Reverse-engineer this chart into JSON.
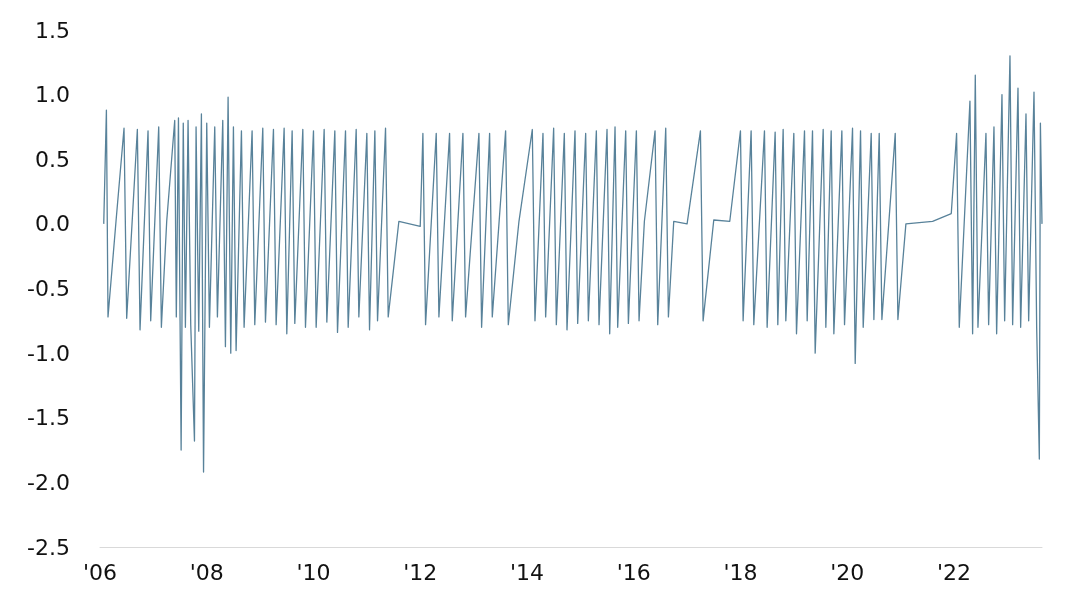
{
  "chart_data": {
    "type": "line",
    "color": "#58829a",
    "marker": "none",
    "grid": false,
    "line_style": "solid",
    "xlim": [
      2006,
      2023.65
    ],
    "ylim": [
      -2.5,
      1.5
    ],
    "xticks": [
      {
        "value": 2006,
        "label": "'06"
      },
      {
        "value": 2008,
        "label": "'08"
      },
      {
        "value": 2010,
        "label": "'10"
      },
      {
        "value": 2012,
        "label": "'12"
      },
      {
        "value": 2014,
        "label": "'14"
      },
      {
        "value": 2016,
        "label": "'16"
      },
      {
        "value": 2018,
        "label": "'18"
      },
      {
        "value": 2020,
        "label": "'20"
      },
      {
        "value": 2022,
        "label": "'22"
      }
    ],
    "yticks": [
      {
        "value": -2.5,
        "label": "-2.5"
      },
      {
        "value": -2,
        "label": "-2.0"
      },
      {
        "value": -1.5,
        "label": "-1.5"
      },
      {
        "value": -1,
        "label": "-1.0"
      },
      {
        "value": -0.5,
        "label": "-0.5"
      },
      {
        "value": 0,
        "label": "0.0"
      },
      {
        "value": 0.5,
        "label": "0.5"
      },
      {
        "value": 1,
        "label": "1.0"
      },
      {
        "value": 1.5,
        "label": "1.5"
      }
    ],
    "x": [
      2006.07,
      2006.12,
      2006.15,
      2006.3,
      2006.45,
      2006.5,
      2006.7,
      2006.75,
      2006.9,
      2006.95,
      2007.1,
      2007.15,
      2007.25,
      2007.4,
      2007.43,
      2007.47,
      2007.5,
      2007.52,
      2007.56,
      2007.6,
      2007.65,
      2007.7,
      2007.77,
      2007.8,
      2007.85,
      2007.9,
      2007.94,
      2008.0,
      2008.05,
      2008.15,
      2008.2,
      2008.3,
      2008.35,
      2008.4,
      2008.45,
      2008.5,
      2008.55,
      2008.65,
      2008.7,
      2008.85,
      2008.9,
      2009.05,
      2009.1,
      2009.25,
      2009.3,
      2009.45,
      2009.5,
      2009.6,
      2009.65,
      2009.8,
      2009.85,
      2010.0,
      2010.05,
      2010.2,
      2010.25,
      2010.4,
      2010.45,
      2010.6,
      2010.65,
      2010.8,
      2010.85,
      2011.0,
      2011.05,
      2011.15,
      2011.2,
      2011.35,
      2011.4,
      2011.6,
      2012.0,
      2012.05,
      2012.1,
      2012.3,
      2012.35,
      2012.55,
      2012.6,
      2012.8,
      2012.85,
      2013.1,
      2013.15,
      2013.3,
      2013.35,
      2013.6,
      2013.65,
      2013.85,
      2014.1,
      2014.15,
      2014.3,
      2014.35,
      2014.5,
      2014.55,
      2014.7,
      2014.75,
      2014.9,
      2014.95,
      2015.1,
      2015.15,
      2015.3,
      2015.35,
      2015.5,
      2015.55,
      2015.65,
      2015.7,
      2015.85,
      2015.9,
      2016.05,
      2016.1,
      2016.2,
      2016.4,
      2016.45,
      2016.6,
      2016.65,
      2016.75,
      2017.0,
      2017.25,
      2017.3,
      2017.5,
      2017.8,
      2018.0,
      2018.05,
      2018.2,
      2018.25,
      2018.45,
      2018.5,
      2018.65,
      2018.7,
      2018.8,
      2018.85,
      2019.0,
      2019.05,
      2019.2,
      2019.25,
      2019.35,
      2019.4,
      2019.55,
      2019.6,
      2019.7,
      2019.75,
      2019.9,
      2019.95,
      2020.1,
      2020.15,
      2020.25,
      2020.3,
      2020.45,
      2020.5,
      2020.6,
      2020.65,
      2020.9,
      2020.95,
      2021.1,
      2021.6,
      2021.95,
      2022.05,
      2022.1,
      2022.3,
      2022.35,
      2022.4,
      2022.45,
      2022.6,
      2022.65,
      2022.75,
      2022.8,
      2022.9,
      2022.95,
      2023.05,
      2023.1,
      2023.2,
      2023.25,
      2023.35,
      2023.4,
      2023.5,
      2023.55,
      2023.6,
      2023.62,
      2023.65
    ],
    "values": [
      0,
      0.88,
      -0.72,
      0.02,
      0.74,
      -0.73,
      0.73,
      -0.82,
      0.72,
      -0.75,
      0.75,
      -0.8,
      0.02,
      0.8,
      -0.72,
      0.82,
      -0.75,
      -1.75,
      0.78,
      -0.8,
      0.8,
      -0.78,
      -1.68,
      0.75,
      -0.83,
      0.85,
      -1.92,
      0.78,
      -0.8,
      0.75,
      -0.72,
      0.8,
      -0.95,
      0.98,
      -1.0,
      0.75,
      -0.98,
      0.72,
      -0.8,
      0.72,
      -0.78,
      0.74,
      -0.76,
      0.73,
      -0.78,
      0.74,
      -0.85,
      0.72,
      -0.77,
      0.73,
      -0.8,
      0.72,
      -0.8,
      0.73,
      -0.76,
      0.72,
      -0.84,
      0.72,
      -0.8,
      0.73,
      -0.72,
      0.7,
      -0.82,
      0.72,
      -0.75,
      0.74,
      -0.72,
      0.02,
      -0.02,
      0.7,
      -0.78,
      0.7,
      -0.72,
      0.7,
      -0.75,
      0.7,
      -0.72,
      0.7,
      -0.8,
      0.7,
      -0.72,
      0.72,
      -0.78,
      0.02,
      0.73,
      -0.75,
      0.7,
      -0.72,
      0.74,
      -0.78,
      0.7,
      -0.82,
      0.72,
      -0.77,
      0.7,
      -0.75,
      0.72,
      -0.78,
      0.73,
      -0.85,
      0.75,
      -0.8,
      0.72,
      -0.77,
      0.72,
      -0.75,
      0.02,
      0.72,
      -0.78,
      0.74,
      -0.72,
      0.02,
      0,
      0.72,
      -0.75,
      0.03,
      0.02,
      0.72,
      -0.75,
      0.72,
      -0.78,
      0.72,
      -0.8,
      0.71,
      -0.78,
      0.73,
      -0.75,
      0.7,
      -0.85,
      0.72,
      -0.75,
      0.72,
      -1.0,
      0.73,
      -0.8,
      0.72,
      -0.85,
      0.72,
      -0.78,
      0.74,
      -1.08,
      0.72,
      -0.8,
      0.7,
      -0.74,
      0.7,
      -0.74,
      0.7,
      -0.74,
      0,
      0.02,
      0.08,
      0.7,
      -0.8,
      0.95,
      -0.85,
      1.15,
      -0.8,
      0.7,
      -0.78,
      0.75,
      -0.85,
      1.0,
      -0.75,
      1.3,
      -0.78,
      1.05,
      -0.8,
      0.85,
      -0.75,
      1.02,
      -0.8,
      -1.82,
      0.78,
      0
    ]
  }
}
